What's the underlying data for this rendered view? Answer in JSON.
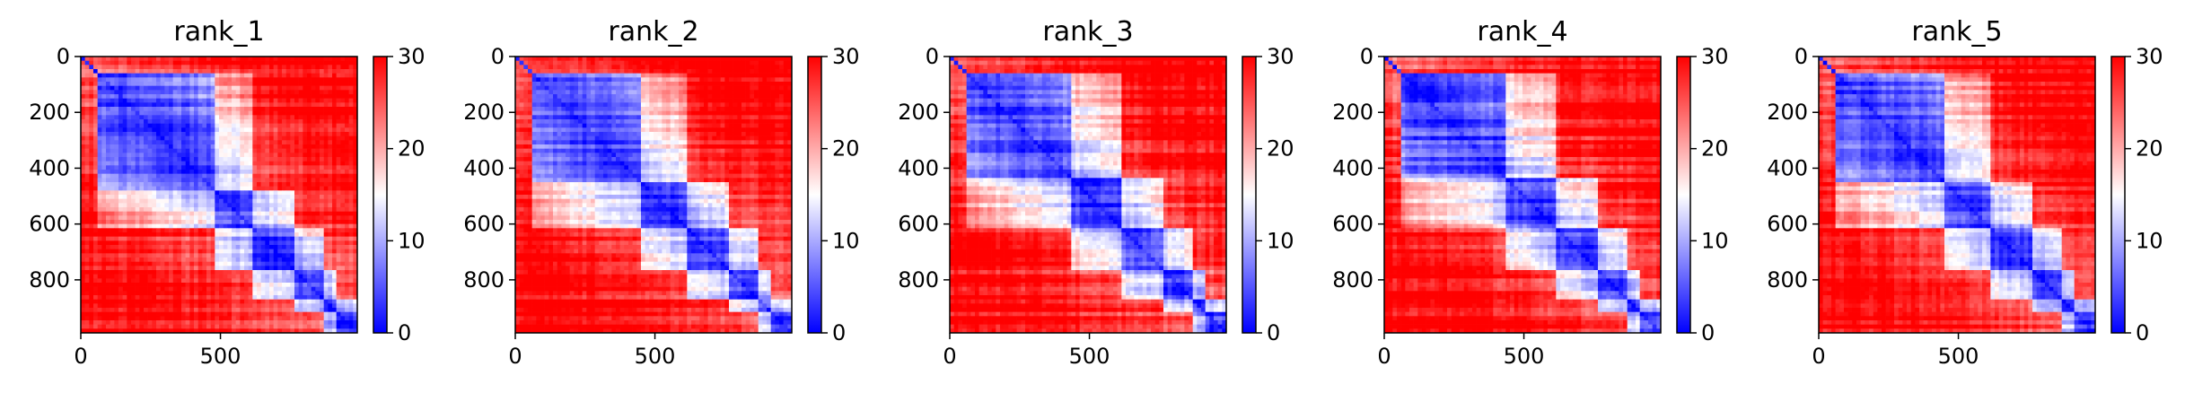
{
  "chart_data": [
    {
      "type": "heatmap",
      "title": "rank_1",
      "xticks": [
        "0",
        "500"
      ],
      "yticks": [
        "0",
        "200",
        "400",
        "600",
        "800"
      ],
      "colorbar_ticks": [
        "0",
        "10",
        "20",
        "30"
      ],
      "xlim": [
        0,
        990
      ],
      "ylim": [
        990,
        0
      ],
      "clim": [
        0,
        30
      ],
      "colormap": "bwr",
      "n_residues": 990,
      "features": {
        "domain_boundaries": [
          60,
          480,
          610,
          760,
          870,
          910
        ]
      }
    },
    {
      "type": "heatmap",
      "title": "rank_2",
      "xticks": [
        "0",
        "500"
      ],
      "yticks": [
        "0",
        "200",
        "400",
        "600",
        "800"
      ],
      "colorbar_ticks": [
        "0",
        "10",
        "20",
        "30"
      ],
      "xlim": [
        0,
        990
      ],
      "ylim": [
        990,
        0
      ],
      "clim": [
        0,
        30
      ],
      "colormap": "bwr",
      "n_residues": 990,
      "features": {
        "domain_boundaries": [
          60,
          450,
          610,
          760,
          870,
          910
        ]
      }
    },
    {
      "type": "heatmap",
      "title": "rank_3",
      "xticks": [
        "0",
        "500"
      ],
      "yticks": [
        "0",
        "200",
        "400",
        "600",
        "800"
      ],
      "colorbar_ticks": [
        "0",
        "10",
        "20",
        "30"
      ],
      "xlim": [
        0,
        990
      ],
      "ylim": [
        990,
        0
      ],
      "clim": [
        0,
        30
      ],
      "colormap": "bwr",
      "n_residues": 990,
      "features": {
        "domain_boundaries": [
          60,
          430,
          610,
          760,
          870,
          910
        ]
      }
    },
    {
      "type": "heatmap",
      "title": "rank_4",
      "xticks": [
        "0",
        "500"
      ],
      "yticks": [
        "0",
        "200",
        "400",
        "600",
        "800"
      ],
      "colorbar_ticks": [
        "0",
        "10",
        "20",
        "30"
      ],
      "xlim": [
        0,
        990
      ],
      "ylim": [
        990,
        0
      ],
      "clim": [
        0,
        30
      ],
      "colormap": "bwr",
      "n_residues": 990,
      "features": {
        "domain_boundaries": [
          60,
          440,
          610,
          760,
          870,
          910
        ]
      }
    },
    {
      "type": "heatmap",
      "title": "rank_5",
      "xticks": [
        "0",
        "500"
      ],
      "yticks": [
        "0",
        "200",
        "400",
        "600",
        "800"
      ],
      "colorbar_ticks": [
        "0",
        "10",
        "20",
        "30"
      ],
      "xlim": [
        0,
        990
      ],
      "ylim": [
        990,
        0
      ],
      "clim": [
        0,
        30
      ],
      "colormap": "bwr",
      "n_residues": 990,
      "features": {
        "domain_boundaries": [
          60,
          450,
          610,
          760,
          870,
          910
        ]
      }
    }
  ],
  "colors": {
    "low": "#0000ff",
    "mid": "#ffffff",
    "high": "#ff0000"
  }
}
